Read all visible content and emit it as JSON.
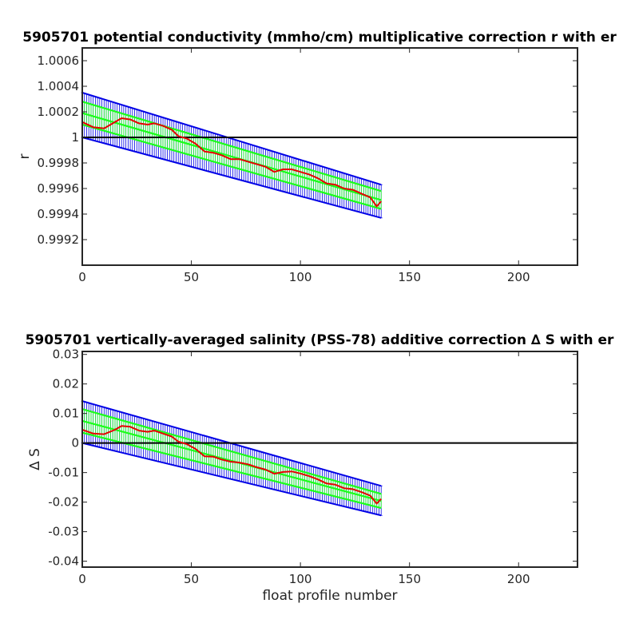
{
  "colors": {
    "error_outer": "#0000e6",
    "error_inner": "#19ff19",
    "fit": "#e60000",
    "baseline": "#000000"
  },
  "chart_data": [
    {
      "type": "line",
      "title": "5905701 potential conductivity (mmho/cm) multiplicative correction r with er",
      "xlabel": "",
      "ylabel": "r",
      "xlim": [
        0,
        227
      ],
      "ylim": [
        0.999,
        1.0007
      ],
      "xticks": [
        0,
        50,
        100,
        150,
        200
      ],
      "xtick_labels": [
        "0",
        "50",
        "100",
        "150",
        "200"
      ],
      "yticks": [
        0.9992,
        0.9994,
        0.9996,
        0.9998,
        1,
        1.0002,
        1.0004,
        1.0006
      ],
      "ytick_labels": [
        "0.9992",
        "0.9994",
        "0.9996",
        "0.9998",
        "1",
        "1.0002",
        "1.0004",
        "1.0006"
      ],
      "baseline": 1,
      "x_range": [
        0,
        137
      ],
      "upper_outer": [
        1.00035,
        0.99963
      ],
      "upper_inner": [
        1.00028,
        0.99958
      ],
      "center": [
        1.00019,
        0.99951
      ],
      "lower_inner": [
        1.0001,
        0.99944
      ],
      "lower_outer": [
        1.0,
        0.99937
      ],
      "series": [
        {
          "name": "",
          "x": [
            0,
            5,
            10,
            15,
            18,
            22,
            26,
            30,
            33,
            37,
            41,
            44,
            48,
            52,
            56,
            60,
            64,
            68,
            72,
            76,
            80,
            84,
            88,
            92,
            96,
            100,
            104,
            108,
            112,
            116,
            120,
            124,
            128,
            132,
            135,
            137
          ],
          "y": [
            1.00012,
            1.00008,
            1.00007,
            1.00012,
            1.00015,
            1.00014,
            1.00011,
            1.0001,
            1.00011,
            1.00009,
            1.00006,
            1.00001,
            0.99999,
            0.99995,
            0.99989,
            0.99988,
            0.99986,
            0.99983,
            0.99983,
            0.99981,
            0.99979,
            0.99977,
            0.99973,
            0.99975,
            0.99975,
            0.99973,
            0.99971,
            0.99968,
            0.99964,
            0.99963,
            0.9996,
            0.99959,
            0.99956,
            0.99953,
            0.99946,
            0.9995
          ]
        }
      ]
    },
    {
      "type": "line",
      "title": "5905701 vertically-averaged salinity (PSS-78) additive correction ∆ S with er",
      "xlabel": "float profile number",
      "ylabel": "∆ S",
      "xlim": [
        0,
        227
      ],
      "ylim": [
        -0.042,
        0.031
      ],
      "xticks": [
        0,
        50,
        100,
        150,
        200
      ],
      "xtick_labels": [
        "0",
        "50",
        "100",
        "150",
        "200"
      ],
      "yticks": [
        -0.04,
        -0.03,
        -0.02,
        -0.01,
        0,
        0.01,
        0.02,
        0.03
      ],
      "ytick_labels": [
        "-0.04",
        "-0.03",
        "-0.02",
        "-0.01",
        "0",
        "0.01",
        "0.02",
        "0.03"
      ],
      "baseline": 0,
      "x_range": [
        0,
        137
      ],
      "upper_outer": [
        0.0142,
        -0.0145
      ],
      "upper_inner": [
        0.0115,
        -0.0172
      ],
      "center": [
        0.0075,
        -0.0196
      ],
      "lower_inner": [
        0.0035,
        -0.022
      ],
      "lower_outer": [
        0.0,
        -0.0245
      ],
      "series": [
        {
          "name": "",
          "x": [
            0,
            5,
            10,
            15,
            18,
            22,
            26,
            30,
            33,
            37,
            41,
            44,
            48,
            52,
            56,
            60,
            64,
            68,
            72,
            76,
            80,
            84,
            88,
            92,
            96,
            100,
            104,
            108,
            112,
            116,
            120,
            124,
            128,
            132,
            135,
            137
          ],
          "y": [
            0.0045,
            0.0032,
            0.003,
            0.0045,
            0.0058,
            0.0055,
            0.0042,
            0.0038,
            0.0042,
            0.0032,
            0.0022,
            0.0005,
            -0.0004,
            -0.002,
            -0.0045,
            -0.0046,
            -0.0056,
            -0.0063,
            -0.0066,
            -0.0072,
            -0.0082,
            -0.009,
            -0.0104,
            -0.0098,
            -0.0096,
            -0.0103,
            -0.0112,
            -0.0123,
            -0.0137,
            -0.0141,
            -0.0153,
            -0.0156,
            -0.0166,
            -0.0178,
            -0.0205,
            -0.0189
          ]
        }
      ]
    }
  ]
}
